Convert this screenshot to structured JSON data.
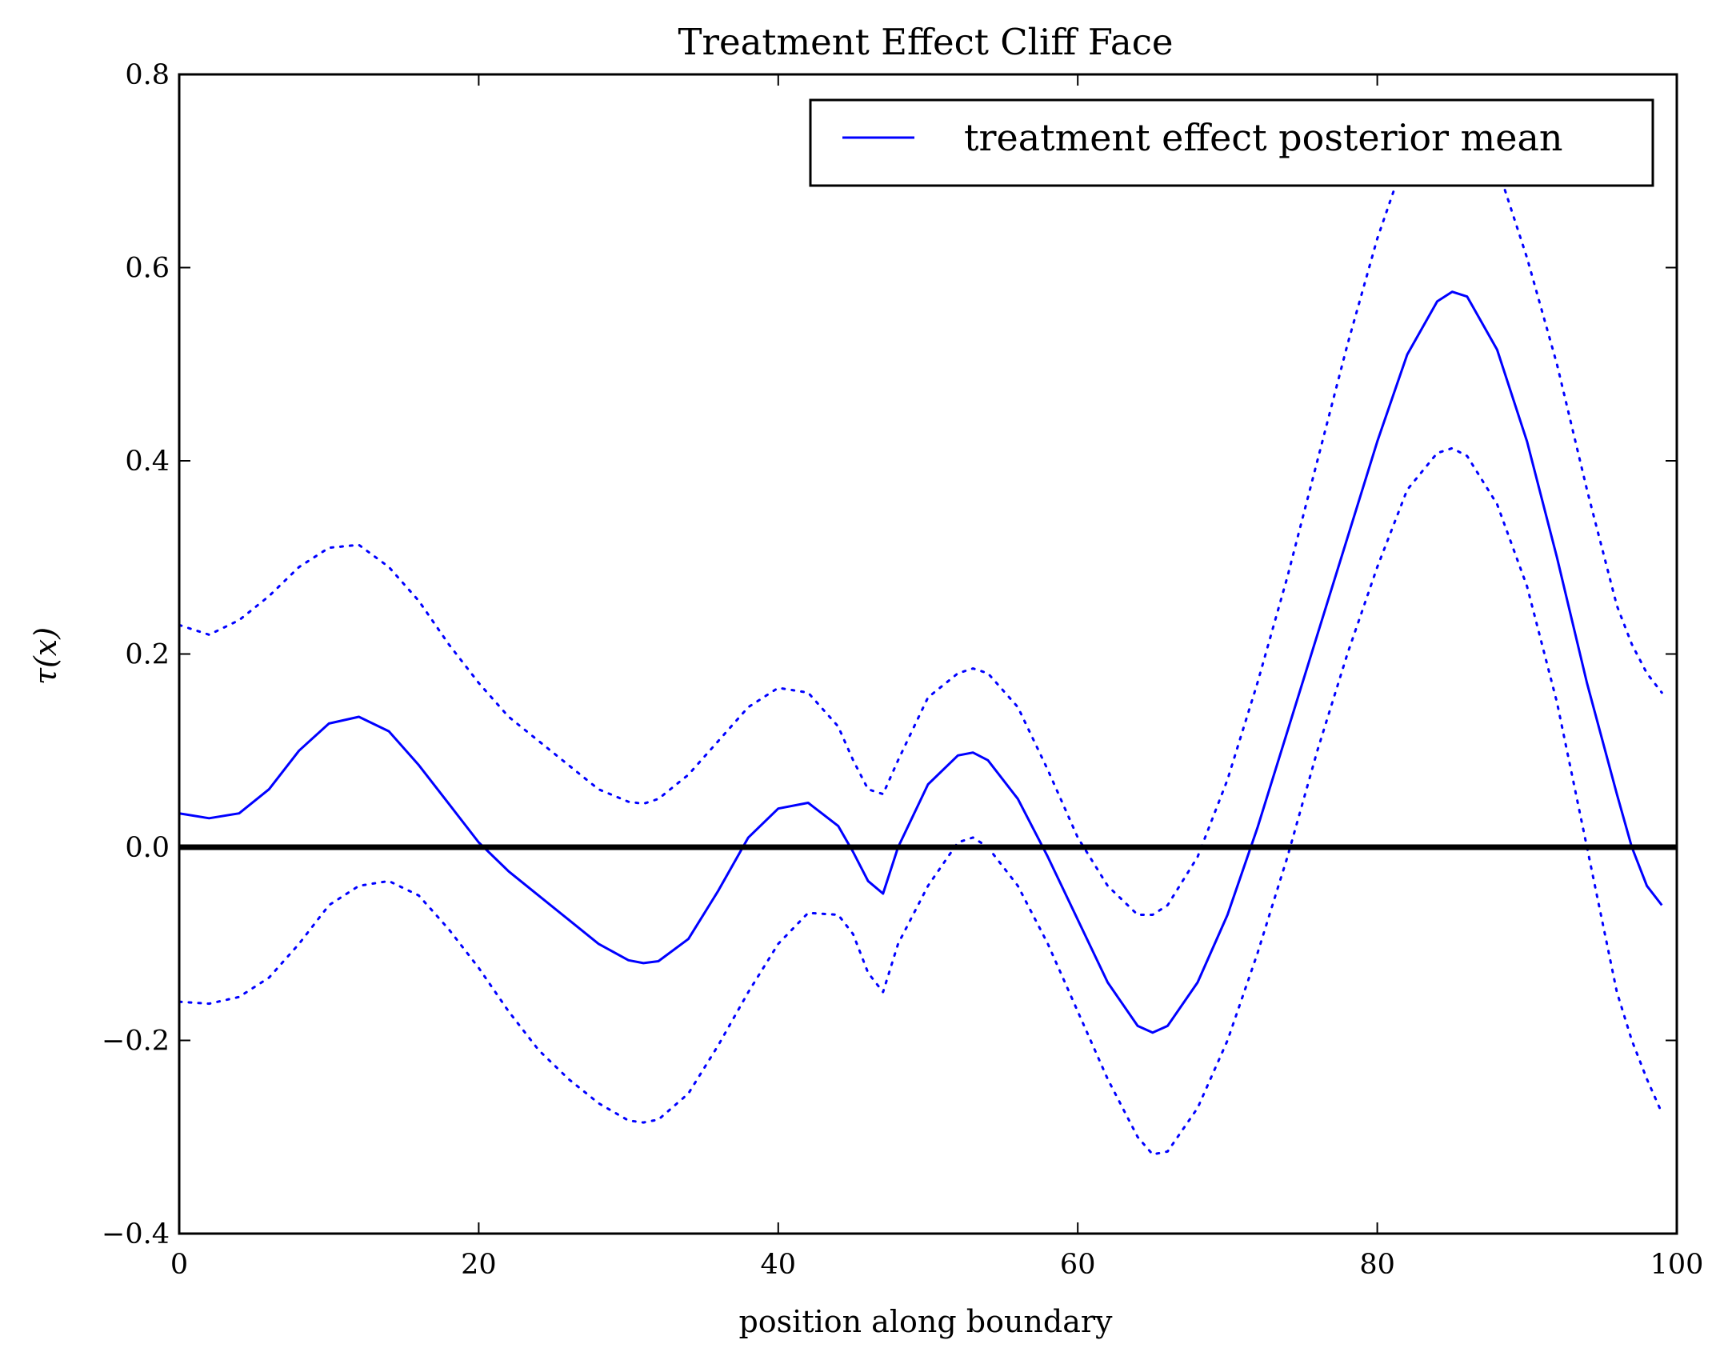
{
  "chart_data": {
    "type": "line",
    "title": "Treatment Effect Cliff Face",
    "xlabel": "position along boundary",
    "ylabel": "τ(x)",
    "xlim": [
      0,
      100
    ],
    "ylim": [
      -0.4,
      0.8
    ],
    "x_ticks": [
      0,
      20,
      40,
      60,
      80,
      100
    ],
    "x_tick_labels": [
      "0",
      "20",
      "40",
      "60",
      "80",
      "100"
    ],
    "y_ticks": [
      -0.4,
      -0.2,
      0.0,
      0.2,
      0.4,
      0.6,
      0.8
    ],
    "y_tick_labels": [
      "−0.4",
      "−0.2",
      "0.0",
      "0.2",
      "0.4",
      "0.6",
      "0.8"
    ],
    "grid": false,
    "legend": {
      "position": "top-right",
      "entries": [
        "treatment effect posterior mean"
      ]
    },
    "reference_line": {
      "y": 0.0,
      "color": "#000000"
    },
    "colors": {
      "series": "#0000ff",
      "reference": "#000000"
    },
    "x": [
      0,
      2,
      4,
      6,
      8,
      10,
      12,
      14,
      16,
      18,
      20,
      22,
      24,
      26,
      28,
      30,
      31,
      32,
      34,
      36,
      38,
      40,
      42,
      44,
      45,
      46,
      47,
      48,
      50,
      52,
      53,
      54,
      56,
      58,
      60,
      62,
      64,
      65,
      66,
      68,
      70,
      72,
      74,
      76,
      78,
      80,
      82,
      84,
      85,
      86,
      88,
      90,
      92,
      94,
      96,
      97,
      98,
      99
    ],
    "series": [
      {
        "name": "treatment effect posterior mean",
        "style": "solid",
        "values": [
          0.035,
          0.03,
          0.035,
          0.06,
          0.1,
          0.128,
          0.135,
          0.12,
          0.085,
          0.045,
          0.005,
          -0.025,
          -0.05,
          -0.075,
          -0.1,
          -0.117,
          -0.12,
          -0.118,
          -0.095,
          -0.045,
          0.01,
          0.04,
          0.046,
          0.022,
          -0.005,
          -0.035,
          -0.048,
          0.0,
          0.065,
          0.095,
          0.098,
          0.09,
          0.05,
          -0.01,
          -0.075,
          -0.14,
          -0.185,
          -0.192,
          -0.185,
          -0.14,
          -0.07,
          0.02,
          0.12,
          0.22,
          0.32,
          0.42,
          0.51,
          0.565,
          0.575,
          0.57,
          0.515,
          0.42,
          0.3,
          0.17,
          0.055,
          0.0,
          -0.04,
          -0.06
        ]
      },
      {
        "style": "dotted",
        "values": [
          0.23,
          0.22,
          0.235,
          0.26,
          0.29,
          0.31,
          0.313,
          0.29,
          0.255,
          0.21,
          0.17,
          0.135,
          0.11,
          0.085,
          0.06,
          0.047,
          0.045,
          0.05,
          0.075,
          0.11,
          0.145,
          0.165,
          0.16,
          0.125,
          0.09,
          0.06,
          0.055,
          0.09,
          0.155,
          0.18,
          0.185,
          0.18,
          0.145,
          0.08,
          0.01,
          -0.04,
          -0.07,
          -0.07,
          -0.06,
          -0.01,
          0.07,
          0.17,
          0.28,
          0.4,
          0.52,
          0.63,
          0.72,
          0.76,
          0.765,
          0.76,
          0.705,
          0.61,
          0.5,
          0.37,
          0.25,
          0.21,
          0.18,
          0.16
        ]
      },
      {
        "style": "dotted",
        "values": [
          -0.16,
          -0.162,
          -0.155,
          -0.135,
          -0.1,
          -0.06,
          -0.04,
          -0.035,
          -0.05,
          -0.085,
          -0.125,
          -0.17,
          -0.21,
          -0.24,
          -0.265,
          -0.283,
          -0.285,
          -0.282,
          -0.255,
          -0.205,
          -0.15,
          -0.1,
          -0.068,
          -0.07,
          -0.09,
          -0.13,
          -0.15,
          -0.1,
          -0.04,
          0.005,
          0.01,
          0.0,
          -0.04,
          -0.1,
          -0.17,
          -0.24,
          -0.3,
          -0.318,
          -0.315,
          -0.27,
          -0.2,
          -0.11,
          -0.01,
          0.1,
          0.2,
          0.29,
          0.37,
          0.408,
          0.413,
          0.405,
          0.355,
          0.27,
          0.15,
          0.0,
          -0.15,
          -0.2,
          -0.24,
          -0.275
        ]
      }
    ]
  }
}
